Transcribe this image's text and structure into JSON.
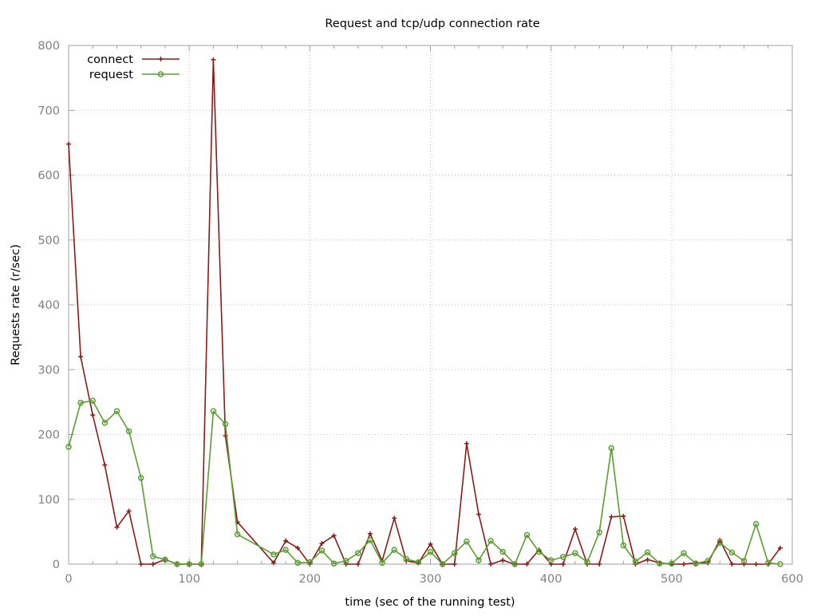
{
  "chart_data": {
    "type": "line",
    "title": "Request and tcp/udp connection rate",
    "xlabel": "time (sec of the running test)",
    "ylabel": "Requests rate (r/sec)",
    "xlim": [
      0,
      600
    ],
    "ylim": [
      0,
      800
    ],
    "xticks": [
      0,
      100,
      200,
      300,
      400,
      500,
      600
    ],
    "yticks": [
      0,
      100,
      200,
      300,
      400,
      500,
      600,
      700,
      800
    ],
    "grid": true,
    "legend_position": "top-left",
    "series": [
      {
        "name": "connect",
        "color": "#8b1a1a",
        "marker": "plus",
        "points": [
          [
            0,
            648
          ],
          [
            10,
            320
          ],
          [
            20,
            230
          ],
          [
            30,
            153
          ],
          [
            40,
            57
          ],
          [
            50,
            82
          ],
          [
            60,
            0
          ],
          [
            70,
            0
          ],
          [
            80,
            7
          ],
          [
            90,
            0
          ],
          [
            100,
            0
          ],
          [
            110,
            0
          ],
          [
            120,
            778
          ],
          [
            130,
            198
          ],
          [
            140,
            65
          ],
          [
            170,
            2
          ],
          [
            180,
            36
          ],
          [
            190,
            25
          ],
          [
            200,
            0
          ],
          [
            210,
            32
          ],
          [
            220,
            44
          ],
          [
            230,
            0
          ],
          [
            240,
            0
          ],
          [
            250,
            47
          ],
          [
            260,
            5
          ],
          [
            270,
            71
          ],
          [
            280,
            5
          ],
          [
            290,
            2
          ],
          [
            300,
            31
          ],
          [
            310,
            0
          ],
          [
            320,
            0
          ],
          [
            330,
            186
          ],
          [
            340,
            77
          ],
          [
            350,
            0
          ],
          [
            360,
            6
          ],
          [
            370,
            0
          ],
          [
            380,
            0
          ],
          [
            390,
            22
          ],
          [
            400,
            0
          ],
          [
            410,
            0
          ],
          [
            420,
            54
          ],
          [
            430,
            0
          ],
          [
            440,
            0
          ],
          [
            450,
            73
          ],
          [
            460,
            74
          ],
          [
            470,
            0
          ],
          [
            480,
            7
          ],
          [
            490,
            2
          ],
          [
            500,
            0
          ],
          [
            510,
            0
          ],
          [
            520,
            2
          ],
          [
            530,
            2
          ],
          [
            540,
            37
          ],
          [
            550,
            0
          ],
          [
            560,
            0
          ],
          [
            570,
            0
          ],
          [
            580,
            0
          ],
          [
            590,
            25
          ]
        ]
      },
      {
        "name": "request",
        "color": "#5a9e2f",
        "marker": "circle",
        "points": [
          [
            0,
            181
          ],
          [
            10,
            249
          ],
          [
            20,
            252
          ],
          [
            30,
            218
          ],
          [
            40,
            236
          ],
          [
            50,
            205
          ],
          [
            60,
            133
          ],
          [
            70,
            12
          ],
          [
            80,
            7
          ],
          [
            90,
            0
          ],
          [
            100,
            0
          ],
          [
            110,
            0
          ],
          [
            120,
            236
          ],
          [
            130,
            216
          ],
          [
            140,
            46
          ],
          [
            170,
            15
          ],
          [
            180,
            22
          ],
          [
            190,
            2
          ],
          [
            200,
            3
          ],
          [
            210,
            21
          ],
          [
            220,
            1
          ],
          [
            230,
            5
          ],
          [
            240,
            17
          ],
          [
            250,
            37
          ],
          [
            260,
            2
          ],
          [
            270,
            22
          ],
          [
            280,
            8
          ],
          [
            290,
            3
          ],
          [
            300,
            19
          ],
          [
            310,
            0
          ],
          [
            320,
            17
          ],
          [
            330,
            35
          ],
          [
            340,
            6
          ],
          [
            350,
            36
          ],
          [
            360,
            19
          ],
          [
            370,
            0
          ],
          [
            380,
            45
          ],
          [
            390,
            19
          ],
          [
            400,
            6
          ],
          [
            410,
            11
          ],
          [
            420,
            17
          ],
          [
            430,
            3
          ],
          [
            440,
            49
          ],
          [
            450,
            179
          ],
          [
            460,
            29
          ],
          [
            470,
            4
          ],
          [
            480,
            18
          ],
          [
            490,
            1
          ],
          [
            500,
            1
          ],
          [
            510,
            17
          ],
          [
            520,
            1
          ],
          [
            530,
            5
          ],
          [
            540,
            33
          ],
          [
            550,
            18
          ],
          [
            560,
            5
          ],
          [
            570,
            62
          ],
          [
            580,
            2
          ],
          [
            590,
            0
          ]
        ]
      }
    ]
  }
}
